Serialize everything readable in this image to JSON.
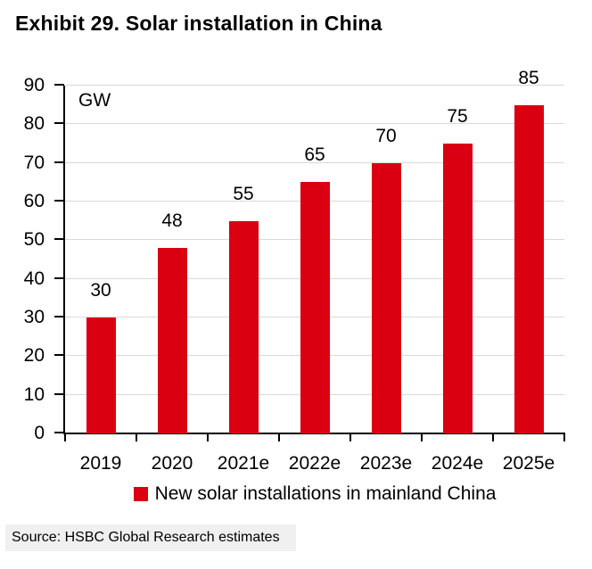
{
  "title": "Exhibit 29. Solar installation in China",
  "colors": {
    "bar": "#DB0011",
    "gridline": "#D9D9D9",
    "axis": "#000000",
    "source_bg": "#F0F0F0"
  },
  "chart_data": {
    "type": "bar",
    "title": "Exhibit 29. Solar installation in China",
    "unit_label": "GW",
    "categories": [
      "2019",
      "2020",
      "2021e",
      "2022e",
      "2023e",
      "2024e",
      "2025e"
    ],
    "values": [
      30,
      48,
      55,
      65,
      70,
      75,
      85
    ],
    "series_name": "New solar installations in mainland China",
    "xlabel": "",
    "ylabel": "GW",
    "ylim": [
      0,
      90
    ],
    "yticks": [
      0,
      10,
      20,
      30,
      40,
      50,
      60,
      70,
      80,
      90
    ],
    "grid": true,
    "legend_position": "bottom",
    "bar_color": "#DB0011"
  },
  "legend": {
    "label": "New solar installations in mainland China"
  },
  "source": "Source: HSBC Global Research estimates"
}
